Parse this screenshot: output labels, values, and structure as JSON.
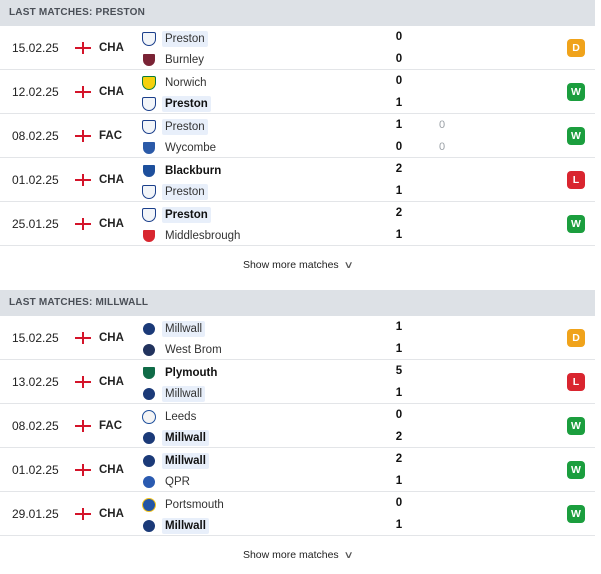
{
  "sections": [
    {
      "header": "LAST MATCHES: PRESTON",
      "more_label": "Show more matches",
      "matches": [
        {
          "date": "15.02.25",
          "comp": "CHA",
          "home": {
            "name": "Preston",
            "crest": "preston-crest",
            "color": "#f2f5f9",
            "ink": "#1b3f8b",
            "highlight": true,
            "bold": false
          },
          "away": {
            "name": "Burnley",
            "crest": "burnley-crest",
            "color": "#7a2335",
            "ink": "#ffffff",
            "highlight": false,
            "bold": false
          },
          "score_home": "0",
          "score_away": "0",
          "pen_home": "",
          "pen_away": "",
          "result": "D",
          "result_color": "#f0a31b"
        },
        {
          "date": "12.02.25",
          "comp": "CHA",
          "home": {
            "name": "Norwich",
            "crest": "norwich-crest",
            "color": "#f5d10c",
            "ink": "#0a7a3b",
            "highlight": false,
            "bold": false
          },
          "away": {
            "name": "Preston",
            "crest": "preston-crest",
            "color": "#f2f5f9",
            "ink": "#1b3f8b",
            "highlight": true,
            "bold": true
          },
          "score_home": "0",
          "score_away": "1",
          "pen_home": "",
          "pen_away": "",
          "result": "W",
          "result_color": "#1b9e3e"
        },
        {
          "date": "08.02.25",
          "comp": "FAC",
          "home": {
            "name": "Preston",
            "crest": "preston-crest",
            "color": "#f2f5f9",
            "ink": "#1b3f8b",
            "highlight": true,
            "bold": false
          },
          "away": {
            "name": "Wycombe",
            "crest": "wycombe-crest",
            "color": "#2b5aa8",
            "ink": "#ffffff",
            "highlight": false,
            "bold": false
          },
          "score_home": "1",
          "score_away": "0",
          "pen_home": "0",
          "pen_away": "0",
          "result": "W",
          "result_color": "#1b9e3e"
        },
        {
          "date": "01.02.25",
          "comp": "CHA",
          "home": {
            "name": "Blackburn",
            "crest": "blackburn-crest",
            "color": "#1d4f9c",
            "ink": "#ffffff",
            "highlight": false,
            "bold": true
          },
          "away": {
            "name": "Preston",
            "crest": "preston-crest",
            "color": "#f2f5f9",
            "ink": "#1b3f8b",
            "highlight": true,
            "bold": false
          },
          "score_home": "2",
          "score_away": "1",
          "pen_home": "",
          "pen_away": "",
          "result": "L",
          "result_color": "#d9252f"
        },
        {
          "date": "25.01.25",
          "comp": "CHA",
          "home": {
            "name": "Preston",
            "crest": "preston-crest",
            "color": "#f2f5f9",
            "ink": "#1b3f8b",
            "highlight": true,
            "bold": true
          },
          "away": {
            "name": "Middlesbrough",
            "crest": "middlesbrough-crest",
            "color": "#d8262f",
            "ink": "#ffffff",
            "highlight": false,
            "bold": false
          },
          "score_home": "2",
          "score_away": "1",
          "pen_home": "",
          "pen_away": "",
          "result": "W",
          "result_color": "#1b9e3e"
        }
      ]
    },
    {
      "header": "LAST MATCHES: MILLWALL",
      "more_label": "Show more matches",
      "matches": [
        {
          "date": "15.02.25",
          "comp": "CHA",
          "home": {
            "name": "Millwall",
            "crest": "millwall-crest",
            "color": "#1b3a78",
            "ink": "#ffffff",
            "highlight": true,
            "bold": false
          },
          "away": {
            "name": "West Brom",
            "crest": "west-brom-crest",
            "color": "#22335e",
            "ink": "#ffffff",
            "highlight": false,
            "bold": false
          },
          "score_home": "1",
          "score_away": "1",
          "pen_home": "",
          "pen_away": "",
          "result": "D",
          "result_color": "#f0a31b"
        },
        {
          "date": "13.02.25",
          "comp": "CHA",
          "home": {
            "name": "Plymouth",
            "crest": "plymouth-crest",
            "color": "#0f6b47",
            "ink": "#ffffff",
            "highlight": false,
            "bold": true
          },
          "away": {
            "name": "Millwall",
            "crest": "millwall-crest",
            "color": "#1b3a78",
            "ink": "#ffffff",
            "highlight": true,
            "bold": false
          },
          "score_home": "5",
          "score_away": "1",
          "pen_home": "",
          "pen_away": "",
          "result": "L",
          "result_color": "#d9252f"
        },
        {
          "date": "08.02.25",
          "comp": "FAC",
          "home": {
            "name": "Leeds",
            "crest": "leeds-crest",
            "color": "#f4f4f4",
            "ink": "#1d4f9c",
            "highlight": false,
            "bold": false
          },
          "away": {
            "name": "Millwall",
            "crest": "millwall-crest",
            "color": "#1b3a78",
            "ink": "#ffffff",
            "highlight": true,
            "bold": true
          },
          "score_home": "0",
          "score_away": "2",
          "pen_home": "",
          "pen_away": "",
          "result": "W",
          "result_color": "#1b9e3e"
        },
        {
          "date": "01.02.25",
          "comp": "CHA",
          "home": {
            "name": "Millwall",
            "crest": "millwall-crest",
            "color": "#1b3a78",
            "ink": "#ffffff",
            "highlight": true,
            "bold": true
          },
          "away": {
            "name": "QPR",
            "crest": "qpr-crest",
            "color": "#2a5ab0",
            "ink": "#ffffff",
            "highlight": false,
            "bold": false
          },
          "score_home": "2",
          "score_away": "1",
          "pen_home": "",
          "pen_away": "",
          "result": "W",
          "result_color": "#1b9e3e"
        },
        {
          "date": "29.01.25",
          "comp": "CHA",
          "home": {
            "name": "Portsmouth",
            "crest": "portsmouth-crest",
            "color": "#2355a6",
            "ink": "#f2c31b",
            "highlight": false,
            "bold": false
          },
          "away": {
            "name": "Millwall",
            "crest": "millwall-crest",
            "color": "#1b3a78",
            "ink": "#ffffff",
            "highlight": true,
            "bold": true
          },
          "score_home": "0",
          "score_away": "1",
          "pen_home": "",
          "pen_away": "",
          "result": "W",
          "result_color": "#1b9e3e"
        }
      ]
    }
  ]
}
